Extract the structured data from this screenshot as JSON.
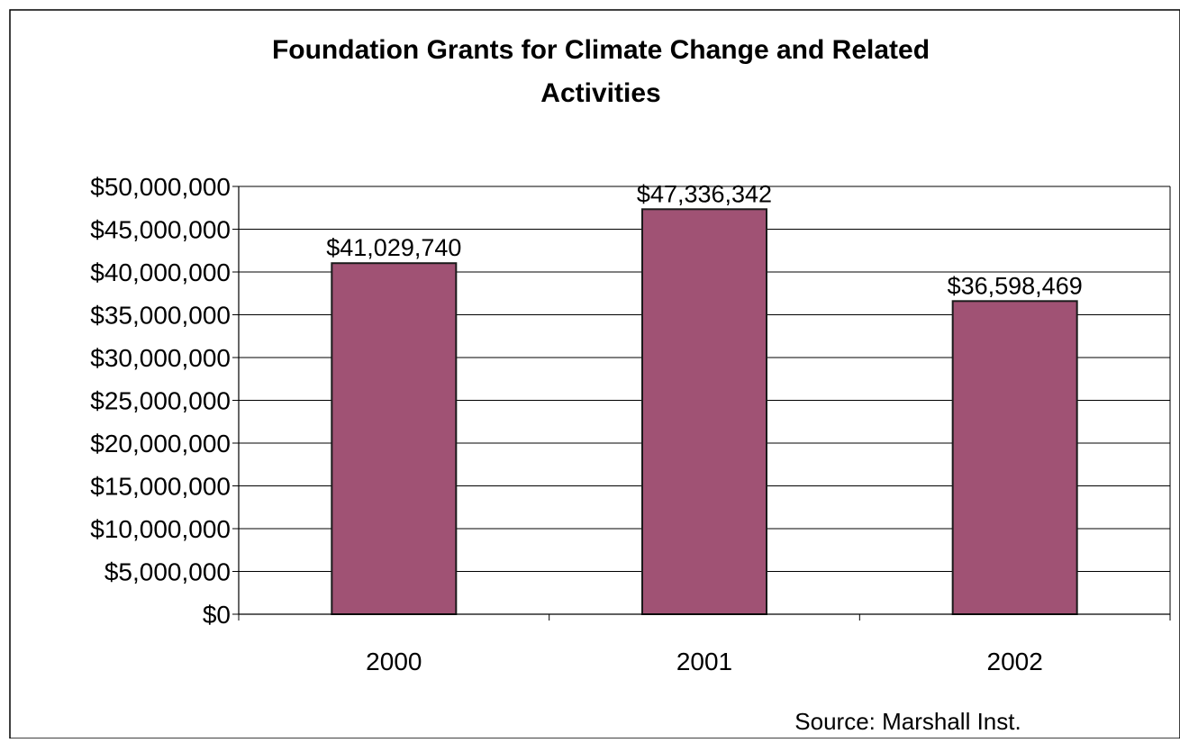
{
  "chart_data": {
    "type": "bar",
    "title_lines": [
      "Foundation Grants for Climate Change and Related",
      "Activities"
    ],
    "categories": [
      "2000",
      "2001",
      "2002"
    ],
    "values": [
      41029740,
      47336342,
      36598469
    ],
    "data_labels": [
      "$41,029,740",
      "$47,336,342",
      "$36,598,469"
    ],
    "y_ticks": [
      0,
      5000000,
      10000000,
      15000000,
      20000000,
      25000000,
      30000000,
      35000000,
      40000000,
      45000000,
      50000000
    ],
    "y_tick_labels": [
      "$0",
      "$5,000,000",
      "$10,000,000",
      "$15,000,000",
      "$20,000,000",
      "$25,000,000",
      "$30,000,000",
      "$35,000,000",
      "$40,000,000",
      "$45,000,000",
      "$50,000,000"
    ],
    "ylim": [
      0,
      50000000
    ],
    "grid": true,
    "legend": "none",
    "source_note": "Source: Marshall Inst.",
    "colors": {
      "bar": "#a05274",
      "bar_edge": "#1a1a1a",
      "grid": "#000000",
      "text": "#000000"
    }
  }
}
